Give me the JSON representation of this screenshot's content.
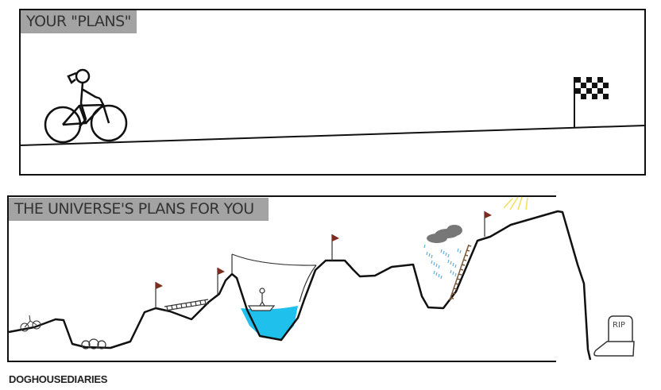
{
  "top_panel": {
    "title": "YOUR \"PLANS\""
  },
  "bottom_panel": {
    "title": "THE UNIVERSE'S PLANS FOR YOU",
    "tombstone_text": "RIP"
  },
  "credit": "DOGHOUSEDIARIES",
  "colors": {
    "label_bg": "#a3a3a3",
    "water": "#1fc0ec",
    "flag": "#7a2e1e",
    "cloud": "#777777",
    "rain": "#6ab0d8",
    "sun": "#f2de5a",
    "ladder": "#7a5a3a"
  }
}
